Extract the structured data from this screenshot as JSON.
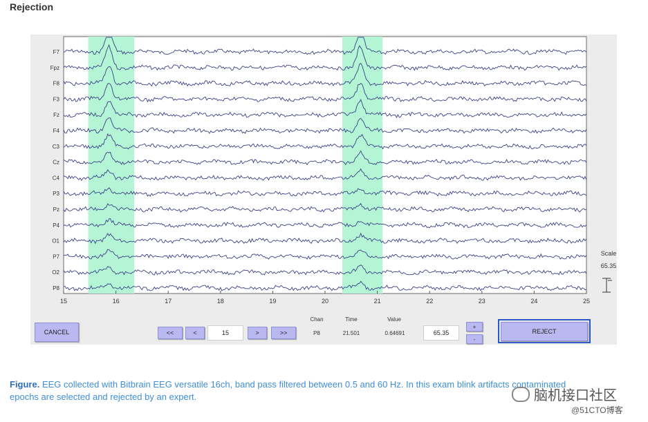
{
  "page_title": "Rejection",
  "plot": {
    "channels": [
      "F7",
      "Fpz",
      "F8",
      "F3",
      "Fz",
      "F4",
      "C3",
      "Cz",
      "C4",
      "P3",
      "Pz",
      "P4",
      "O1",
      "P7",
      "O2",
      "P8"
    ],
    "x_ticks": [
      "15",
      "16",
      "17",
      "18",
      "19",
      "20",
      "21",
      "22",
      "23",
      "24",
      "25"
    ],
    "x_range": [
      15,
      25
    ],
    "selected_epochs": [
      [
        15.47,
        16.35
      ],
      [
        20.33,
        21.1
      ]
    ],
    "highlight_color": "#b3f5d5",
    "trace_color": "#3a3f86"
  },
  "scale": {
    "label": "Scale",
    "value": "65.35"
  },
  "controls": {
    "cancel_label": "CANCEL",
    "first_label": "<<",
    "prev_label": "<",
    "epoch_value": "15",
    "next_label": ">",
    "last_label": ">>",
    "chan_header": "Chan",
    "time_header": "Time",
    "value_header": "Value",
    "chan_value": "P8",
    "time_value": "21.501",
    "value_value": "0.64691",
    "scale_value": "65.35",
    "scale_up_label": "+",
    "scale_down_label": "-",
    "reject_label": "REJECT"
  },
  "caption": {
    "bold": "Figure.",
    "text": " EEG collected with Bitbrain EEG versatile 16ch, band pass filtered between 0.5 and 60 Hz. In this exam  blink artifacts contaminated epochs are selected and rejected by an expert."
  },
  "watermark": {
    "line1": "脑机接口社区",
    "line2": "@51CTO博客"
  }
}
